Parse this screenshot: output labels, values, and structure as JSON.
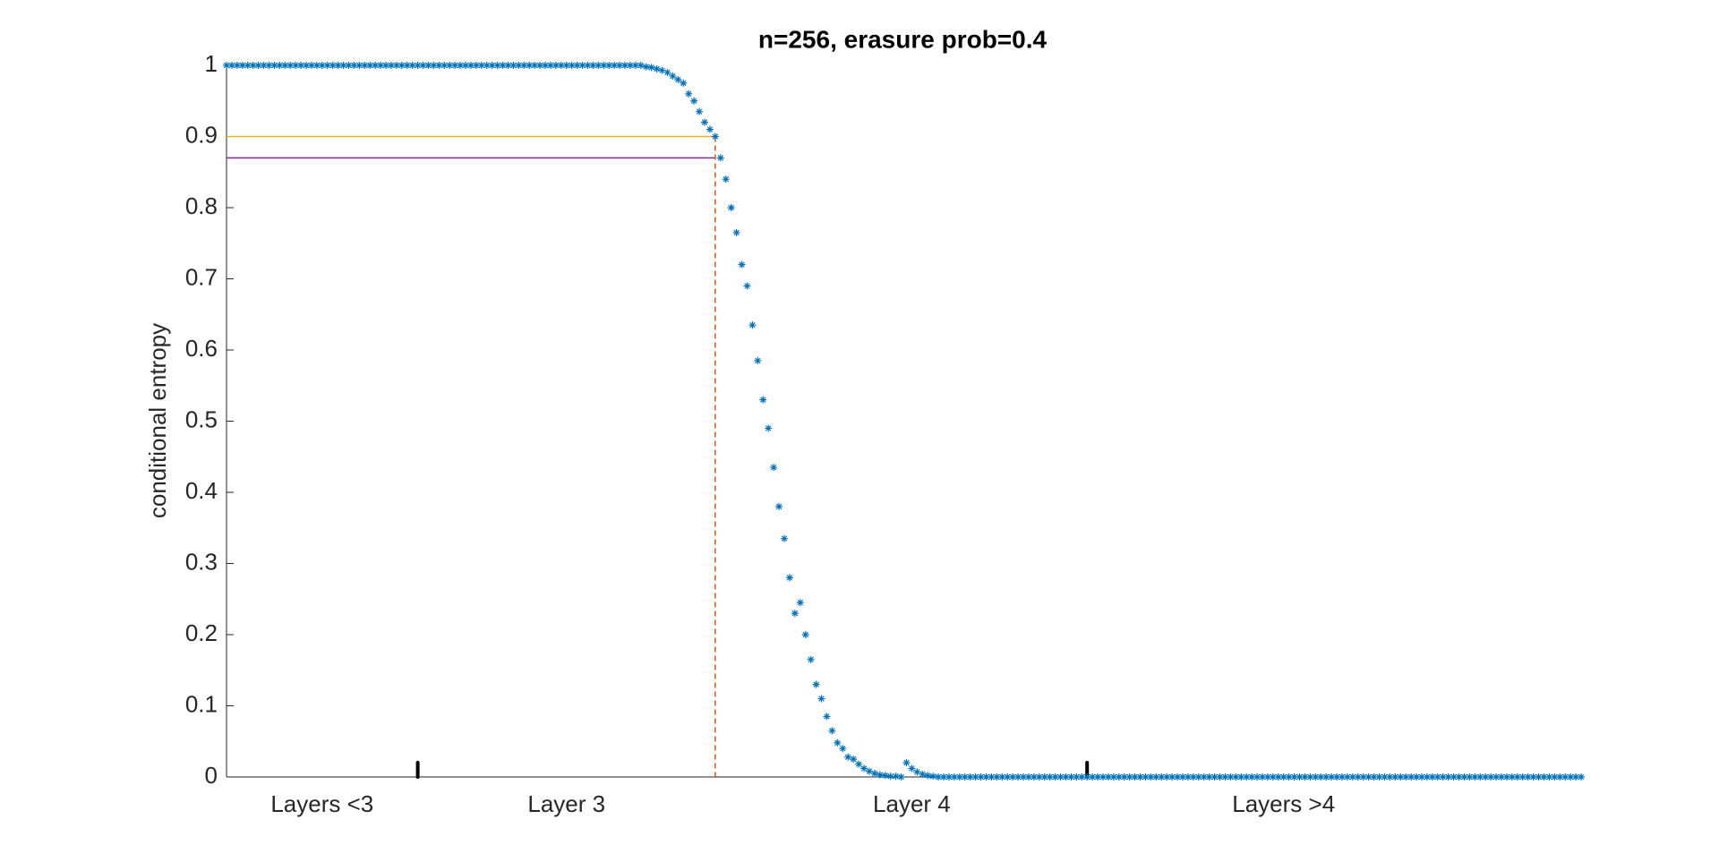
{
  "chart_data": {
    "type": "scatter",
    "title": "n=256, erasure prob=0.4",
    "y_label": "conditional entropy",
    "series": [
      {
        "color": "#0072bd",
        "x": [
          1,
          2,
          3,
          4,
          5,
          6,
          7,
          8,
          9,
          10,
          11,
          12,
          13,
          14,
          15,
          16,
          17,
          18,
          19,
          20,
          21,
          22,
          23,
          24,
          25,
          26,
          27,
          28,
          29,
          30,
          31,
          32,
          33,
          34,
          35,
          36,
          37,
          38,
          39,
          40,
          41,
          42,
          43,
          44,
          45,
          46,
          47,
          48,
          49,
          50,
          51,
          52,
          53,
          54,
          55,
          56,
          57,
          58,
          59,
          60,
          61,
          62,
          63,
          64,
          65,
          66,
          67,
          68,
          69,
          70,
          71,
          72,
          73,
          74,
          75,
          76,
          77,
          78,
          79,
          80,
          81,
          82,
          83,
          84,
          85,
          86,
          87,
          88,
          89,
          90,
          91,
          92,
          93,
          94,
          95,
          96,
          97,
          98,
          99,
          100,
          101,
          102,
          103,
          104,
          105,
          106,
          107,
          108,
          109,
          110,
          111,
          112,
          113,
          114,
          115,
          116,
          117,
          118,
          119,
          120,
          121,
          122,
          123,
          124,
          125,
          126,
          127,
          128,
          129,
          130,
          131,
          132,
          133,
          134,
          135,
          136,
          137,
          138,
          139,
          140,
          141,
          142,
          143,
          144,
          145,
          146,
          147,
          148,
          149,
          150,
          151,
          152,
          153,
          154,
          155,
          156,
          157,
          158,
          159,
          160,
          161,
          162,
          163,
          164,
          165,
          166,
          167,
          168,
          169,
          170,
          171,
          172,
          173,
          174,
          175,
          176,
          177,
          178,
          179,
          180,
          181,
          182,
          183,
          184,
          185,
          186,
          187,
          188,
          189,
          190,
          191,
          192,
          193,
          194,
          195,
          196,
          197,
          198,
          199,
          200,
          201,
          202,
          203,
          204,
          205,
          206,
          207,
          208,
          209,
          210,
          211,
          212,
          213,
          214,
          215,
          216,
          217,
          218,
          219,
          220,
          221,
          222,
          223,
          224,
          225,
          226,
          227,
          228,
          229,
          230,
          231,
          232,
          233,
          234,
          235,
          236,
          237,
          238,
          239,
          240,
          241,
          242,
          243,
          244,
          245,
          246,
          247,
          248,
          249,
          250,
          251,
          252,
          253,
          254,
          255,
          256
        ],
        "values": [
          1,
          1,
          1,
          1,
          1,
          1,
          1,
          1,
          1,
          1,
          1,
          1,
          1,
          1,
          1,
          1,
          1,
          1,
          1,
          1,
          1,
          1,
          1,
          1,
          1,
          1,
          1,
          1,
          1,
          1,
          1,
          1,
          1,
          1,
          1,
          1,
          1,
          1,
          1,
          1,
          1,
          1,
          1,
          1,
          1,
          1,
          1,
          1,
          1,
          1,
          1,
          1,
          1,
          1,
          1,
          1,
          1,
          1,
          1,
          1,
          1,
          1,
          1,
          1,
          1,
          1,
          1,
          1,
          1,
          1,
          1,
          1,
          1,
          1,
          1,
          1,
          1,
          1,
          1,
          0.998,
          0.997,
          0.995,
          0.993,
          0.99,
          0.985,
          0.98,
          0.975,
          0.96,
          0.95,
          0.935,
          0.92,
          0.91,
          0.9,
          0.87,
          0.84,
          0.8,
          0.765,
          0.72,
          0.69,
          0.635,
          0.585,
          0.53,
          0.49,
          0.435,
          0.38,
          0.335,
          0.28,
          0.23,
          0.245,
          0.2,
          0.165,
          0.13,
          0.11,
          0.085,
          0.065,
          0.048,
          0.04,
          0.028,
          0.025,
          0.018,
          0.012,
          0.008,
          0.005,
          0.003,
          0.002,
          0.001,
          0.001,
          0,
          0.02,
          0.012,
          0.007,
          0.004,
          0.002,
          0.001,
          0,
          0,
          0,
          0,
          0,
          0,
          0,
          0,
          0,
          0,
          0,
          0,
          0,
          0,
          0,
          0,
          0,
          0,
          0,
          0,
          0,
          0,
          0,
          0,
          0,
          0,
          0,
          0,
          0,
          0,
          0,
          0,
          0,
          0,
          0,
          0,
          0,
          0,
          0,
          0,
          0,
          0,
          0,
          0,
          0,
          0,
          0,
          0,
          0,
          0,
          0,
          0,
          0,
          0,
          0,
          0,
          0,
          0,
          0,
          0,
          0,
          0,
          0,
          0,
          0,
          0,
          0,
          0,
          0,
          0,
          0,
          0,
          0,
          0,
          0,
          0,
          0,
          0,
          0,
          0,
          0,
          0,
          0,
          0,
          0,
          0,
          0,
          0,
          0,
          0,
          0,
          0,
          0,
          0,
          0,
          0,
          0,
          0,
          0,
          0,
          0,
          0,
          0,
          0,
          0,
          0,
          0,
          0,
          0,
          0,
          0,
          0,
          0,
          0,
          0,
          0,
          0,
          0,
          0,
          0,
          0,
          0
        ]
      }
    ],
    "hlines": [
      {
        "y": 0.9,
        "x": [
          1,
          93
        ],
        "color": "#edb120"
      },
      {
        "y": 0.87,
        "x": [
          1,
          93
        ],
        "color": "#7e2f8e"
      }
    ],
    "vline": {
      "x": 93,
      "color": "#d95319"
    },
    "markers": [
      37,
      163
    ],
    "text_labels": [
      {
        "text": "Layers <3",
        "x": 19
      },
      {
        "text": "Layer 3",
        "x": 65
      },
      {
        "text": "Layer 4",
        "x": 130
      },
      {
        "text": "Layers >4",
        "x": 200
      }
    ],
    "xlim": [
      1,
      256
    ],
    "ylim": [
      0,
      1
    ],
    "yticks": [
      0,
      0.1,
      0.2,
      0.3,
      0.4,
      0.5,
      0.6,
      0.7,
      0.8,
      0.9,
      1
    ]
  }
}
